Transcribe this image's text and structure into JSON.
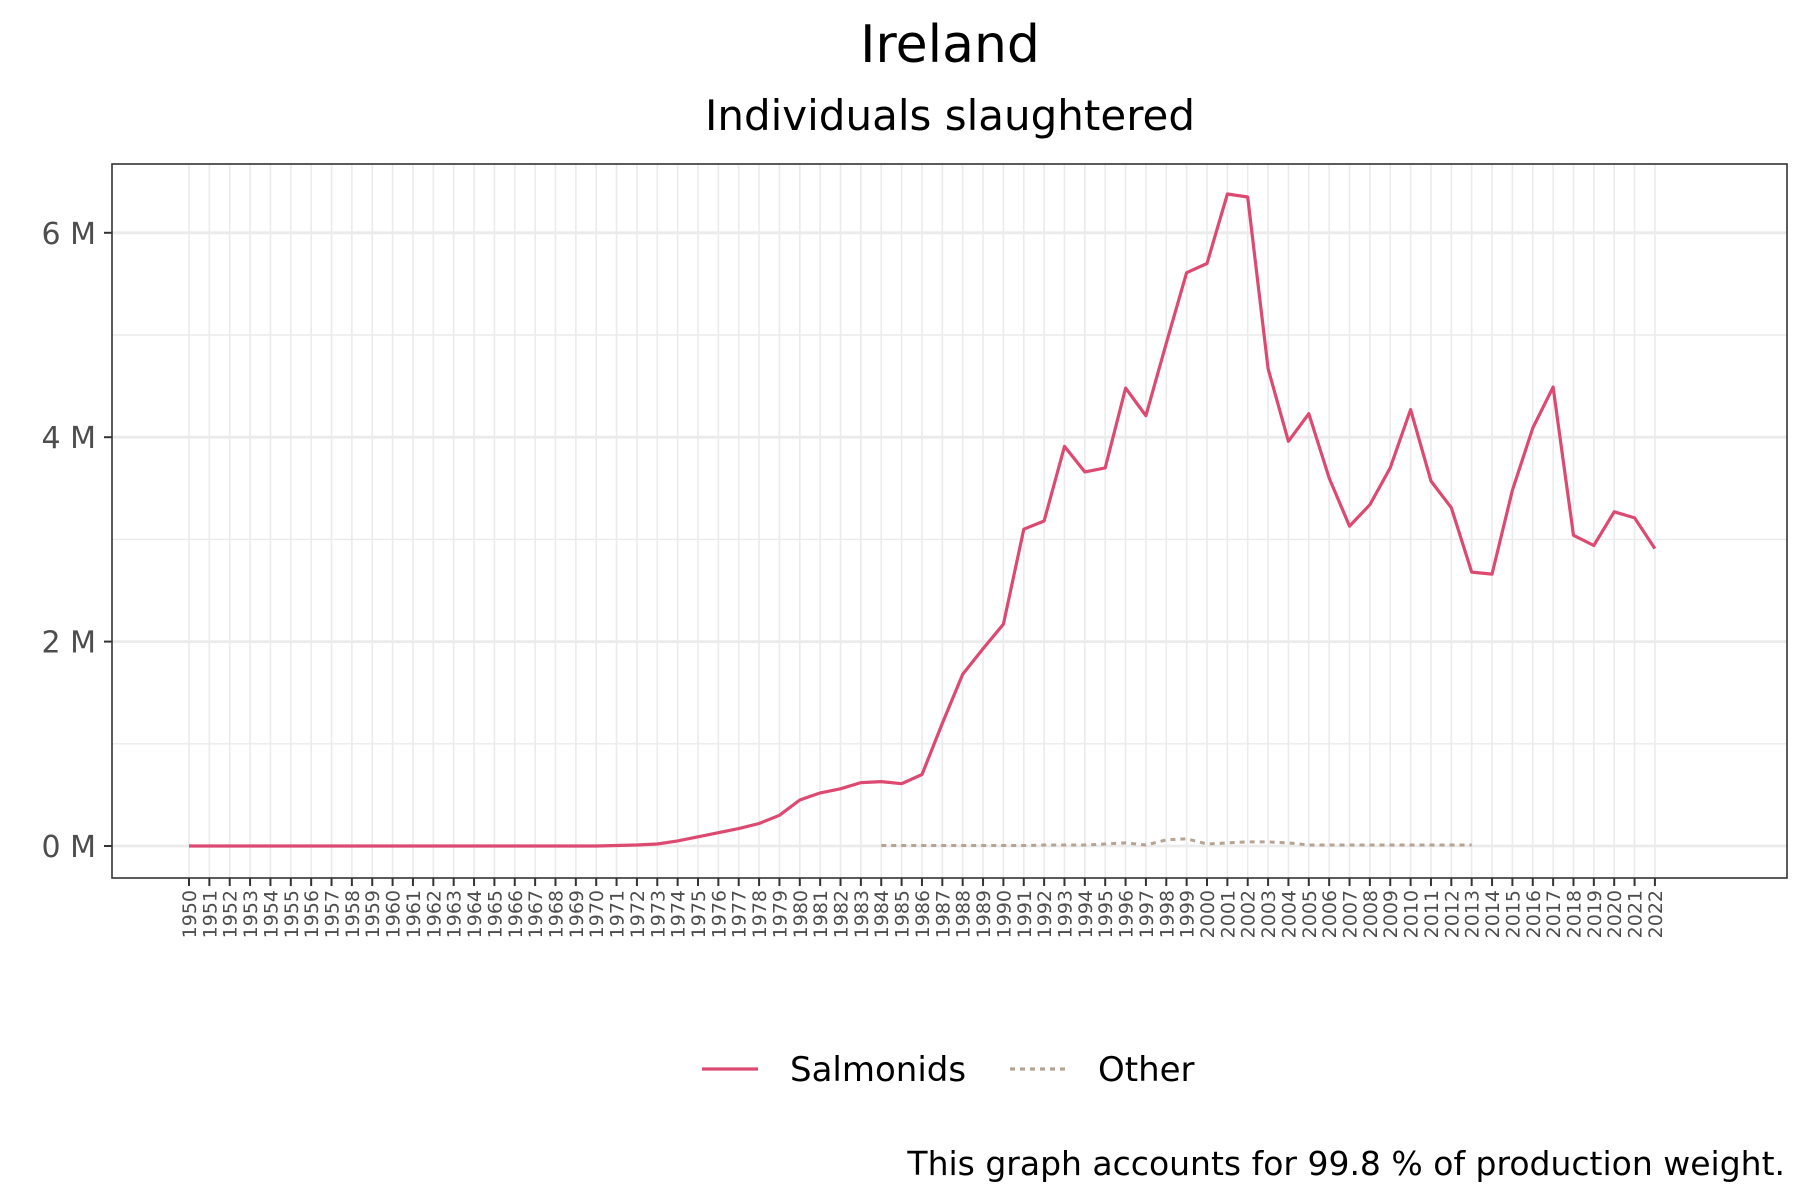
{
  "chart_data": {
    "type": "line",
    "title": "Ireland",
    "subtitle": "Individuals slaughtered",
    "caption": "This graph accounts for 99.8 % of production weight.",
    "xlabel": "",
    "ylabel": "",
    "x_range": [
      1950,
      2022
    ],
    "ylim": [
      0,
      6.65
    ],
    "y_ticks": [
      0,
      2,
      4,
      6
    ],
    "y_tick_labels": [
      "0 M",
      "2 M",
      "4 M",
      "6 M"
    ],
    "y_minor_ticks": [
      1,
      3,
      5
    ],
    "grid": true,
    "legend_position": "bottom",
    "colors": {
      "Salmonids": "#dc4a72",
      "Other": "#b5a393"
    },
    "categories": [
      "1950",
      "1951",
      "1952",
      "1953",
      "1954",
      "1955",
      "1956",
      "1957",
      "1958",
      "1959",
      "1960",
      "1961",
      "1962",
      "1963",
      "1964",
      "1965",
      "1966",
      "1967",
      "1968",
      "1969",
      "1970",
      "1971",
      "1972",
      "1973",
      "1974",
      "1975",
      "1976",
      "1977",
      "1978",
      "1979",
      "1980",
      "1981",
      "1982",
      "1983",
      "1984",
      "1985",
      "1986",
      "1987",
      "1988",
      "1989",
      "1990",
      "1991",
      "1992",
      "1993",
      "1994",
      "1995",
      "1996",
      "1997",
      "1998",
      "1999",
      "2000",
      "2001",
      "2002",
      "2003",
      "2004",
      "2005",
      "2006",
      "2007",
      "2008",
      "2009",
      "2010",
      "2011",
      "2012",
      "2013",
      "2014",
      "2015",
      "2016",
      "2017",
      "2018",
      "2019",
      "2020",
      "2021",
      "2022"
    ],
    "series": [
      {
        "name": "Salmonids",
        "line_style": "solid",
        "x": [
          1950,
          1951,
          1952,
          1953,
          1954,
          1955,
          1956,
          1957,
          1958,
          1959,
          1960,
          1961,
          1962,
          1963,
          1964,
          1965,
          1966,
          1967,
          1968,
          1969,
          1970,
          1971,
          1972,
          1973,
          1974,
          1975,
          1976,
          1977,
          1978,
          1979,
          1980,
          1981,
          1982,
          1983,
          1984,
          1985,
          1986,
          1987,
          1988,
          1989,
          1990,
          1991,
          1992,
          1993,
          1994,
          1995,
          1996,
          1997,
          1998,
          1999,
          2000,
          2001,
          2002,
          2003,
          2004,
          2005,
          2006,
          2007,
          2008,
          2009,
          2010,
          2011,
          2012,
          2013,
          2014,
          2015,
          2016,
          2017,
          2018,
          2019,
          2020,
          2021,
          2022
        ],
        "values": [
          0,
          0,
          0,
          0,
          0,
          0,
          0,
          0,
          0,
          0,
          0,
          0,
          0,
          0,
          0,
          0,
          0,
          0,
          0,
          0,
          0,
          0.005,
          0.01,
          0.02,
          0.05,
          0.09,
          0.13,
          0.17,
          0.22,
          0.3,
          0.45,
          0.52,
          0.56,
          0.62,
          0.63,
          0.61,
          0.7,
          1.2,
          1.68,
          1.93,
          2.17,
          3.1,
          3.18,
          3.91,
          3.66,
          3.7,
          4.48,
          4.21,
          4.92,
          5.61,
          5.7,
          6.38,
          6.35,
          4.67,
          3.96,
          4.23,
          3.6,
          3.13,
          3.34,
          3.7,
          4.27,
          3.57,
          3.31,
          2.68,
          2.66,
          3.48,
          4.09,
          4.49,
          3.04,
          2.94,
          3.27,
          3.21,
          2.91
        ]
      },
      {
        "name": "Other",
        "line_style": "dotted",
        "x": [
          1984,
          1985,
          1986,
          1987,
          1988,
          1989,
          1990,
          1991,
          1992,
          1993,
          1994,
          1995,
          1996,
          1997,
          1998,
          1999,
          2000,
          2001,
          2002,
          2003,
          2004,
          2005,
          2006,
          2007,
          2008,
          2009,
          2010,
          2011,
          2012,
          2013
        ],
        "values": [
          0.005,
          0.005,
          0.005,
          0.005,
          0.005,
          0.005,
          0.005,
          0.005,
          0.01,
          0.01,
          0.01,
          0.02,
          0.03,
          0.01,
          0.06,
          0.07,
          0.02,
          0.03,
          0.04,
          0.04,
          0.03,
          0.01,
          0.01,
          0.01,
          0.01,
          0.01,
          0.01,
          0.01,
          0.01,
          0.01
        ]
      }
    ]
  }
}
